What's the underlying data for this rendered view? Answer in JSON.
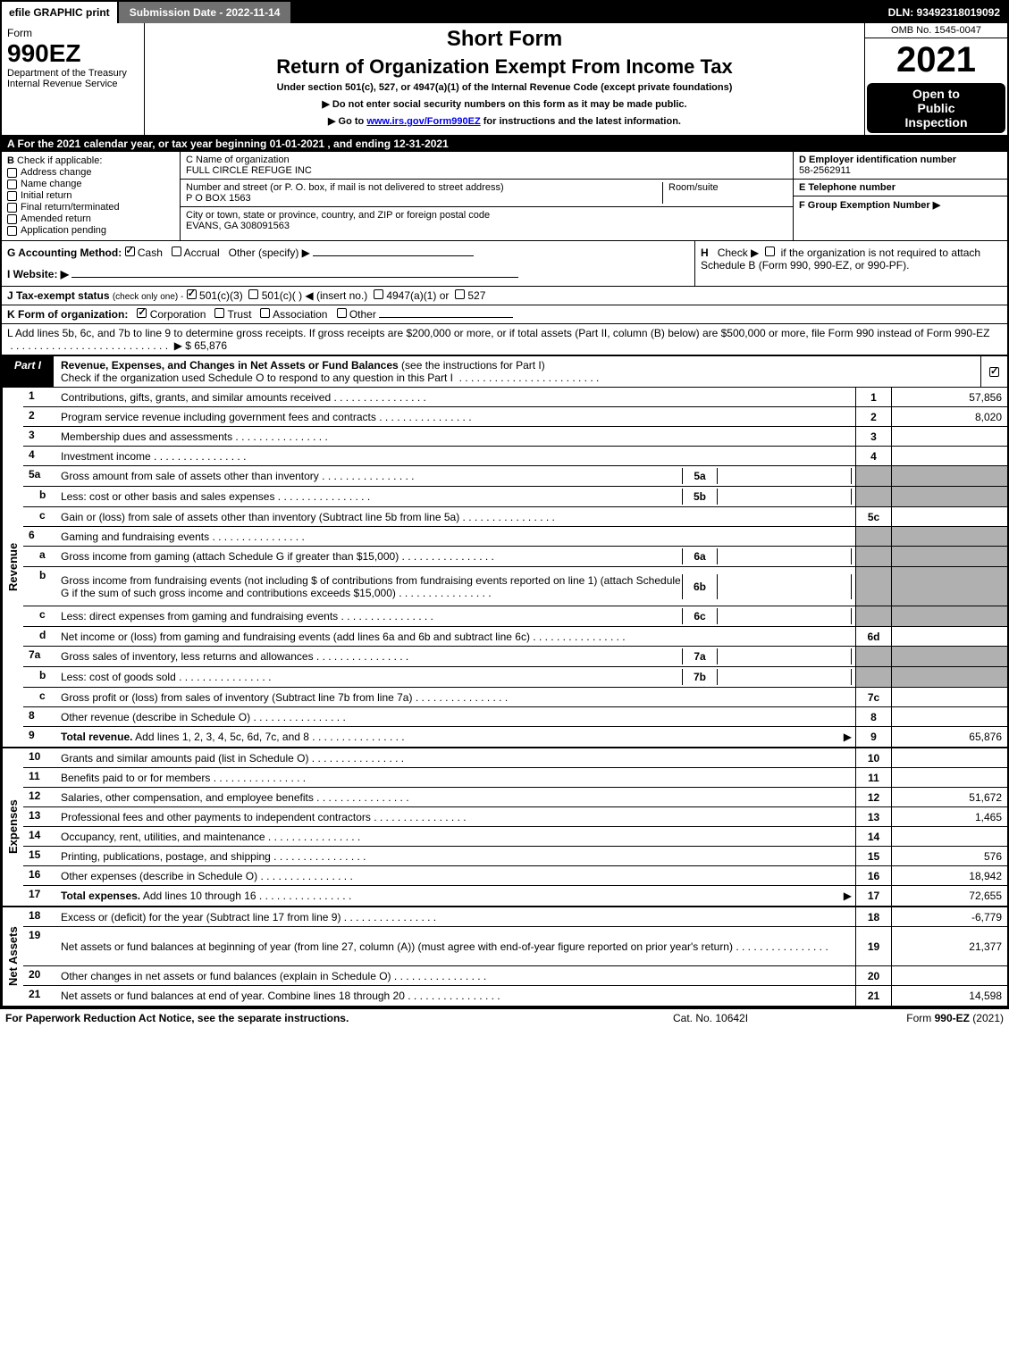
{
  "top_bar": {
    "efile_print": "efile GRAPHIC print",
    "submission_date": "Submission Date - 2022-11-14",
    "dln": "DLN: 93492318019092"
  },
  "header": {
    "form_label": "Form",
    "form_number": "990EZ",
    "dept": "Department of the Treasury",
    "irs": "Internal Revenue Service",
    "short_form": "Short Form",
    "return_title": "Return of Organization Exempt From Income Tax",
    "subtitle": "Under section 501(c), 527, or 4947(a)(1) of the Internal Revenue Code (except private foundations)",
    "note1": "▶ Do not enter social security numbers on this form as it may be made public.",
    "note2_pre": "▶ Go to ",
    "note2_link": "www.irs.gov/Form990EZ",
    "note2_post": " for instructions and the latest information.",
    "omb": "OMB No. 1545-0047",
    "year": "2021",
    "open1": "Open to",
    "open2": "Public",
    "open3": "Inspection"
  },
  "row_a": "A  For the 2021 calendar year, or tax year beginning 01-01-2021 , and ending 12-31-2021",
  "section_b": {
    "b_label": "B",
    "b_text": "Check if applicable:",
    "addr_change": "Address change",
    "name_change": "Name change",
    "initial_return": "Initial return",
    "final_return": "Final return/terminated",
    "amended_return": "Amended return",
    "app_pending": "Application pending",
    "c_label": "C Name of organization",
    "c_name": "FULL CIRCLE REFUGE INC",
    "c_street_label": "Number and street (or P. O. box, if mail is not delivered to street address)",
    "c_street": "P O BOX 1563",
    "room_suite": "Room/suite",
    "c_city_label": "City or town, state or province, country, and ZIP or foreign postal code",
    "c_city": "EVANS, GA  308091563",
    "d_label": "D Employer identification number",
    "d_ein": "58-2562911",
    "e_label": "E Telephone number",
    "f_label": "F Group Exemption Number   ▶"
  },
  "section_g": {
    "g_pre": "G Accounting Method:   ",
    "g_cash": "Cash",
    "g_accrual": "Accrual",
    "g_other": "Other (specify) ▶",
    "h_label": "H",
    "h_text": "Check ▶",
    "h_rest": "if the organization is not required to attach Schedule B (Form 990, 990-EZ, or 990-PF).",
    "i_label": "I Website: ▶",
    "j_label": "J Tax-exempt status",
    "j_sub": "(check only one) -",
    "j_501c3": "501(c)(3)",
    "j_501c": "501(c)(  ) ◀ (insert no.)",
    "j_4947": "4947(a)(1) or",
    "j_527": "527"
  },
  "row_k": {
    "label": "K Form of organization:",
    "corp": "Corporation",
    "trust": "Trust",
    "assoc": "Association",
    "other": "Other"
  },
  "row_l": {
    "text": "L Add lines 5b, 6c, and 7b to line 9 to determine gross receipts. If gross receipts are $200,000 or more, or if total assets (Part II, column (B) below) are $500,000 or more, file Form 990 instead of Form 990-EZ",
    "arrow": "▶",
    "amount": "$ 65,876"
  },
  "part1": {
    "label": "Part I",
    "title_bold": "Revenue, Expenses, and Changes in Net Assets or Fund Balances",
    "title_rest": "(see the instructions for Part I)",
    "check_text": "Check if the organization used Schedule O to respond to any question in this Part I"
  },
  "revenue_section": {
    "vert_label": "Revenue",
    "rows": [
      {
        "num": "1",
        "desc": "Contributions, gifts, grants, and similar amounts received",
        "rnum": "1",
        "val": "57,856"
      },
      {
        "num": "2",
        "desc": "Program service revenue including government fees and contracts",
        "rnum": "2",
        "val": "8,020"
      },
      {
        "num": "3",
        "desc": "Membership dues and assessments",
        "rnum": "3",
        "val": ""
      },
      {
        "num": "4",
        "desc": "Investment income",
        "rnum": "4",
        "val": ""
      },
      {
        "num": "5a",
        "desc": "Gross amount from sale of assets other than inventory",
        "inline_num": "5a",
        "inline_val": "",
        "rnum": "",
        "val": "",
        "shaded": true
      },
      {
        "num": "b",
        "indent": true,
        "desc": "Less: cost or other basis and sales expenses",
        "inline_num": "5b",
        "inline_val": "",
        "rnum": "",
        "val": "",
        "shaded": true
      },
      {
        "num": "c",
        "indent": true,
        "desc": "Gain or (loss) from sale of assets other than inventory (Subtract line 5b from line 5a)",
        "rnum": "5c",
        "val": ""
      },
      {
        "num": "6",
        "desc": "Gaming and fundraising events",
        "rnum": "",
        "val": "",
        "shaded": true
      },
      {
        "num": "a",
        "indent": true,
        "desc": "Gross income from gaming (attach Schedule G if greater than $15,000)",
        "inline_num": "6a",
        "inline_val": "",
        "rnum": "",
        "val": "",
        "shaded": true
      },
      {
        "num": "b",
        "indent": true,
        "desc": "Gross income from fundraising events (not including $                     of contributions from fundraising events reported on line 1) (attach Schedule G if the sum of such gross income and contributions exceeds $15,000)",
        "inline_num": "6b",
        "inline_val": "",
        "rnum": "",
        "val": "",
        "shaded": true,
        "tall": true
      },
      {
        "num": "c",
        "indent": true,
        "desc": "Less: direct expenses from gaming and fundraising events",
        "inline_num": "6c",
        "inline_val": "",
        "rnum": "",
        "val": "",
        "shaded": true
      },
      {
        "num": "d",
        "indent": true,
        "desc": "Net income or (loss) from gaming and fundraising events (add lines 6a and 6b and subtract line 6c)",
        "rnum": "6d",
        "val": ""
      },
      {
        "num": "7a",
        "desc": "Gross sales of inventory, less returns and allowances",
        "inline_num": "7a",
        "inline_val": "",
        "rnum": "",
        "val": "",
        "shaded": true
      },
      {
        "num": "b",
        "indent": true,
        "desc": "Less: cost of goods sold",
        "inline_num": "7b",
        "inline_val": "",
        "rnum": "",
        "val": "",
        "shaded": true
      },
      {
        "num": "c",
        "indent": true,
        "desc": "Gross profit or (loss) from sales of inventory (Subtract line 7b from line 7a)",
        "rnum": "7c",
        "val": ""
      },
      {
        "num": "8",
        "desc": "Other revenue (describe in Schedule O)",
        "rnum": "8",
        "val": ""
      },
      {
        "num": "9",
        "desc": "Total revenue. Add lines 1, 2, 3, 4, 5c, 6d, 7c, and 8",
        "bold": true,
        "arrow": true,
        "rnum": "9",
        "val": "65,876"
      }
    ]
  },
  "expenses_section": {
    "vert_label": "Expenses",
    "rows": [
      {
        "num": "10",
        "desc": "Grants and similar amounts paid (list in Schedule O)",
        "rnum": "10",
        "val": ""
      },
      {
        "num": "11",
        "desc": "Benefits paid to or for members",
        "rnum": "11",
        "val": ""
      },
      {
        "num": "12",
        "desc": "Salaries, other compensation, and employee benefits",
        "rnum": "12",
        "val": "51,672"
      },
      {
        "num": "13",
        "desc": "Professional fees and other payments to independent contractors",
        "rnum": "13",
        "val": "1,465"
      },
      {
        "num": "14",
        "desc": "Occupancy, rent, utilities, and maintenance",
        "rnum": "14",
        "val": ""
      },
      {
        "num": "15",
        "desc": "Printing, publications, postage, and shipping",
        "rnum": "15",
        "val": "576"
      },
      {
        "num": "16",
        "desc": "Other expenses (describe in Schedule O)",
        "rnum": "16",
        "val": "18,942"
      },
      {
        "num": "17",
        "desc": "Total expenses. Add lines 10 through 16",
        "bold": true,
        "arrow": true,
        "rnum": "17",
        "val": "72,655"
      }
    ]
  },
  "netassets_section": {
    "vert_label": "Net Assets",
    "rows": [
      {
        "num": "18",
        "desc": "Excess or (deficit) for the year (Subtract line 17 from line 9)",
        "rnum": "18",
        "val": "-6,779"
      },
      {
        "num": "19",
        "desc": "Net assets or fund balances at beginning of year (from line 27, column (A)) (must agree with end-of-year figure reported on prior year's return)",
        "tall": true,
        "rnum": "19",
        "val": "21,377"
      },
      {
        "num": "20",
        "desc": "Other changes in net assets or fund balances (explain in Schedule O)",
        "rnum": "20",
        "val": ""
      },
      {
        "num": "21",
        "desc": "Net assets or fund balances at end of year. Combine lines 18 through 20",
        "rnum": "21",
        "val": "14,598"
      }
    ]
  },
  "footer": {
    "left": "For Paperwork Reduction Act Notice, see the separate instructions.",
    "mid": "Cat. No. 10642I",
    "right_pre": "Form ",
    "right_bold": "990-EZ",
    "right_post": " (2021)"
  },
  "colors": {
    "black": "#000000",
    "white": "#ffffff",
    "gray_bar": "#707070",
    "shaded": "#b0b0b0",
    "link": "#0000ee"
  }
}
